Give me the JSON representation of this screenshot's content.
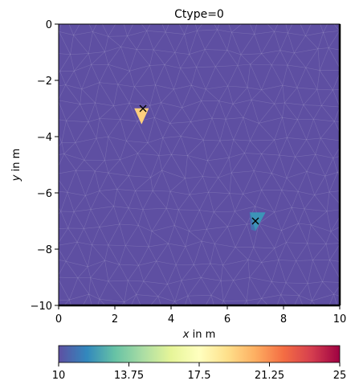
{
  "chart_data": {
    "type": "heatmap",
    "title": "Ctype=0",
    "xlabel_italic": "x",
    "xlabel_rest": " in m",
    "ylabel_italic": "y",
    "ylabel_rest": " in m",
    "xlim": [
      0,
      10
    ],
    "ylim": [
      -10,
      0
    ],
    "xticks": [
      0,
      2,
      4,
      6,
      8,
      10
    ],
    "xtick_labels": [
      "0",
      "2",
      "4",
      "6",
      "8",
      "10"
    ],
    "yticks": [
      0,
      -2,
      -4,
      -6,
      -8,
      -10
    ],
    "ytick_labels": [
      "0",
      "−2",
      "−4",
      "−6",
      "−8",
      "−10"
    ],
    "background_value": 10,
    "colormap": "Spectral_r",
    "colorbar": {
      "min": 10,
      "max": 25,
      "ticks": [
        10,
        13.75,
        17.5,
        21.25,
        25
      ],
      "tick_labels": [
        "10",
        "13.75",
        "17.5",
        "21.25",
        "25"
      ]
    },
    "markers": [
      {
        "x": 3.0,
        "y": -3.0,
        "symbol": "x"
      },
      {
        "x": 7.0,
        "y": -7.0,
        "symbol": "x"
      }
    ],
    "hot_cells": [
      {
        "value": 19.5,
        "vertices": [
          [
            2.7,
            -3.0
          ],
          [
            3.2,
            -3.0
          ],
          [
            2.95,
            -3.55
          ]
        ]
      },
      {
        "value": 11.8,
        "vertices": [
          [
            6.8,
            -6.7
          ],
          [
            7.35,
            -6.7
          ],
          [
            7.0,
            -7.35
          ]
        ]
      },
      {
        "value": 10.9,
        "vertices": [
          [
            6.8,
            -6.7
          ],
          [
            7.0,
            -7.35
          ],
          [
            6.85,
            -7.3
          ]
        ]
      }
    ]
  }
}
